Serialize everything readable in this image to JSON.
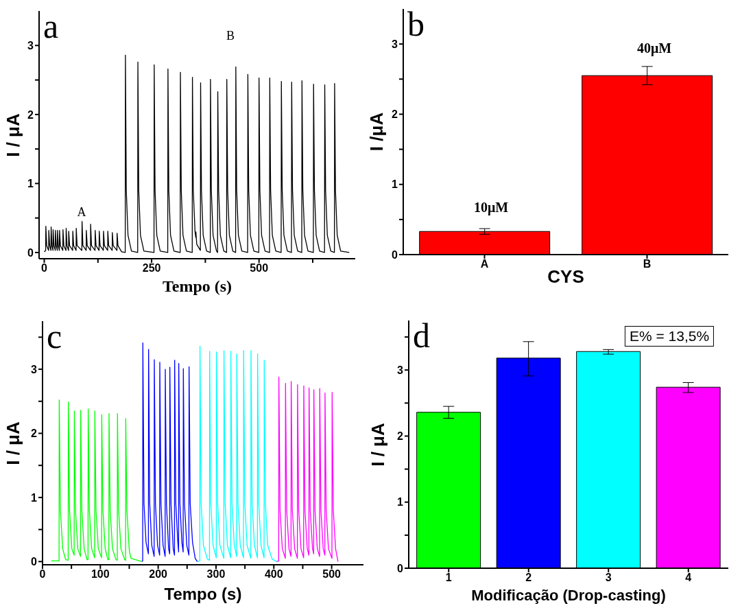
{
  "chart_data": [
    {
      "type": "line",
      "title": "a",
      "xlabel": "Tempo (s)",
      "ylabel": "I / μA",
      "xlim": [
        -12,
        724
      ],
      "ylim": [
        -0.09,
        3.5
      ],
      "xticks": [
        0,
        {
          "value": 125,
          "label": null
        },
        250,
        {
          "value": 375,
          "label": null
        },
        500,
        {
          "value": 625,
          "label": null
        }
      ],
      "yticks": [
        0,
        {
          "value": 0.5,
          "label": null
        },
        1,
        {
          "value": 1.5,
          "label": null
        },
        2,
        {
          "value": 2.5,
          "label": null
        },
        3
      ],
      "annotations": [
        "A",
        "B"
      ],
      "series": [
        {
          "color": "#000000",
          "x": [
            0,
            3.3,
            3.7,
            5.7,
            10.2,
            10.6,
            12.6,
            15.6,
            16,
            18,
            20.3,
            20.7,
            22.7,
            25.6,
            26,
            28,
            30.4,
            30.8,
            32.8,
            35.2,
            35.6,
            37.6,
            43.2,
            43.6,
            45.6,
            50.6,
            51,
            53,
            56.6,
            57,
            59,
            66.1,
            66.5,
            68.5,
            74.1,
            74.5,
            76.5,
            87.6,
            88,
            90,
            97.6,
            98,
            100,
            107.6,
            108,
            110,
            118.2,
            118.6,
            120.6,
            127.6,
            128,
            130,
            137.6,
            138,
            140,
            147.6,
            148,
            150,
            158.1,
            158.5,
            160.5,
            169.2,
            169.6,
            171.6,
            180,
            188.5,
            189,
            191,
            195,
            203,
            217.5,
            218,
            220,
            224,
            232,
            255.5,
            256,
            258,
            262,
            270,
            287.5,
            288,
            290,
            294,
            302,
            316.5,
            317,
            319,
            323,
            331,
            344.5,
            345,
            347,
            351,
            352.8,
            353,
            355,
            363.5,
            364,
            366,
            370,
            378,
            386.5,
            387,
            389,
            393,
            401,
            403.5,
            404,
            406,
            410,
            418,
            424.5,
            425,
            427,
            431,
            439,
            445.5,
            446,
            448,
            452,
            460,
            473.5,
            474,
            476,
            480,
            488,
            499.5,
            500,
            502,
            506,
            514,
            524.5,
            525,
            527,
            531,
            539,
            551.5,
            552,
            554,
            558,
            566,
            575.5,
            576,
            578,
            582,
            590,
            599.5,
            600,
            602,
            606,
            614,
            626.5,
            627,
            629,
            633,
            641,
            652.5,
            653,
            655,
            659,
            667,
            675.5,
            676,
            678,
            682,
            690,
            710
          ],
          "values": [
            0.01,
            0.03,
            0.38,
            0.1,
            0.03,
            0.32,
            0.1,
            0.03,
            0.37,
            0.1,
            0.03,
            0.33,
            0.1,
            0.03,
            0.32,
            0.1,
            0.03,
            0.32,
            0.1,
            0.03,
            0.32,
            0.1,
            0.03,
            0.33,
            0.1,
            0.03,
            0.35,
            0.1,
            0.03,
            0.31,
            0.1,
            0.03,
            0.31,
            0.1,
            0.03,
            0.35,
            0.1,
            0.03,
            0.45,
            0.1,
            0.03,
            0.32,
            0.1,
            0.03,
            0.41,
            0.1,
            0.03,
            0.32,
            0.1,
            0.03,
            0.31,
            0.1,
            0.03,
            0.31,
            0.1,
            0.03,
            0.31,
            0.1,
            0.03,
            0.29,
            0.1,
            0.03,
            0.28,
            0.1,
            0.01,
            0,
            2.86,
            0.9,
            0.25,
            0.02,
            0,
            2.76,
            0.9,
            0.25,
            0.02,
            0,
            2.72,
            0.9,
            0.25,
            0.02,
            0,
            2.66,
            0.9,
            0.25,
            0.02,
            0,
            2.61,
            0.9,
            0.25,
            0.02,
            0,
            2.54,
            0.9,
            0.3,
            0.22,
            0.3,
            0.12,
            0.03,
            2.46,
            0.9,
            0.25,
            0.02,
            0,
            2.51,
            0.9,
            0.25,
            0.02,
            0,
            2.33,
            0.9,
            0.25,
            0.02,
            0,
            2.51,
            0.9,
            0.25,
            0.02,
            0,
            2.69,
            0.9,
            0.25,
            0.02,
            0,
            2.58,
            0.9,
            0.25,
            0.02,
            0,
            2.53,
            0.9,
            0.25,
            0.02,
            0,
            2.53,
            0.9,
            0.25,
            0.02,
            0,
            2.48,
            0.9,
            0.25,
            0.02,
            0,
            2.47,
            0.9,
            0.25,
            0.02,
            0,
            2.49,
            0.9,
            0.25,
            0.02,
            0,
            2.44,
            0.9,
            0.25,
            0.02,
            0,
            2.43,
            0.9,
            0.25,
            0.02,
            0,
            2.45,
            0.9,
            0.25,
            0.02,
            0
          ]
        }
      ]
    },
    {
      "type": "bar",
      "title": "b",
      "xlabel": "CYS",
      "ylabel": "I /μA",
      "categories": [
        "A",
        "B"
      ],
      "values": [
        0.33,
        2.55
      ],
      "errors": [
        0.04,
        0.13
      ],
      "color": "#ff0000",
      "ylim": [
        0,
        3.5
      ],
      "yticks": [
        0,
        {
          "value": 0.5,
          "label": null
        },
        1,
        {
          "value": 1.5,
          "label": null
        },
        2,
        {
          "value": 2.5,
          "label": null
        },
        3
      ],
      "annotations": [
        "10μM",
        "40μM"
      ]
    },
    {
      "type": "line",
      "title": "c",
      "xlabel": "Tempo (s)",
      "ylabel": "I / μA",
      "xlim": [
        0,
        555
      ],
      "ylim": [
        -0.05,
        3.75
      ],
      "xticks": [
        0,
        {
          "value": 50,
          "label": null
        },
        100,
        {
          "value": 150,
          "label": null
        },
        200,
        {
          "value": 250,
          "label": null
        },
        300,
        {
          "value": 350,
          "label": null
        },
        400,
        {
          "value": 450,
          "label": null
        },
        500
      ],
      "yticks": [
        0,
        {
          "value": 0.5,
          "label": null
        },
        1,
        {
          "value": 1.5,
          "label": null
        },
        2,
        {
          "value": 2.5,
          "label": null
        },
        3,
        {
          "value": 3.5,
          "label": null
        }
      ],
      "series": [
        {
          "color": "#00ff00",
          "x": [
            15,
            28.6,
            28.9,
            30.9,
            34.9,
            40,
            44.4,
            44.7,
            46.7,
            50.7,
            54.7,
            55,
            57,
            61,
            65.7,
            66,
            68,
            72,
            77,
            78.7,
            79,
            81,
            85,
            90.2,
            90.5,
            92.5,
            96.5,
            102.1,
            102.4,
            104.4,
            108.4,
            113,
            114.7,
            115,
            117,
            121,
            127,
            129.3,
            129.6,
            131.6,
            135.6,
            142,
            143.6,
            143.9,
            145.9,
            149.9,
            150.5,
            153,
            172
          ],
          "values": [
            0.01,
            0.01,
            2.52,
            0.8,
            0.2,
            0.03,
            0.02,
            2.49,
            0.8,
            0.2,
            0.1,
            2.35,
            0.8,
            0.2,
            0.08,
            2.36,
            0.8,
            0.2,
            0.03,
            0.03,
            2.38,
            0.8,
            0.2,
            0.06,
            2.35,
            0.8,
            0.2,
            0.06,
            2.29,
            0.8,
            0.2,
            0.03,
            0.03,
            2.31,
            0.8,
            0.2,
            0.03,
            0.02,
            2.31,
            0.8,
            0.2,
            0.03,
            0.02,
            2.23,
            0.8,
            0.2,
            0.15,
            0.05,
            0
          ]
        },
        {
          "color": "#0000ff",
          "x": [
            172,
            173.2,
            173.5,
            175.5,
            179,
            183.1,
            183.4,
            185.4,
            189,
            193,
            193.3,
            195.3,
            199,
            202.5,
            202.8,
            204.8,
            208.5,
            212,
            212.3,
            214.3,
            218,
            219.9,
            220.2,
            222.2,
            226,
            228.2,
            228.5,
            230.5,
            234,
            235.3,
            235.6,
            237.6,
            241,
            243.2,
            243.5,
            245.5,
            249.5,
            253.1,
            253.4,
            255.4,
            259.4,
            264,
            267.6
          ],
          "values": [
            0,
            0.01,
            3.41,
            0.9,
            0.3,
            0.12,
            3.31,
            0.9,
            0.25,
            0.08,
            3.15,
            0.9,
            0.25,
            0.1,
            3.11,
            0.9,
            0.25,
            0.08,
            3.0,
            0.9,
            0.2,
            0.12,
            3.03,
            0.9,
            0.2,
            0.1,
            3.14,
            0.9,
            0.3,
            0.15,
            3.09,
            0.9,
            0.3,
            0.15,
            3.01,
            0.9,
            0.25,
            0.1,
            3.04,
            0.9,
            0.3,
            0.05,
            0
          ]
        },
        {
          "color": "#00ffff",
          "x": [
            268,
            272,
            272.3,
            274.3,
            278.3,
            285,
            288.7,
            289,
            291,
            295,
            300.5,
            300.8,
            302.8,
            306.8,
            313.5,
            313.8,
            315.8,
            319.8,
            325.4,
            325.7,
            327.7,
            331.7,
            335.7,
            336,
            338,
            342,
            347.5,
            347.8,
            349.8,
            353.8,
            360.2,
            360.5,
            362.5,
            366.5,
            371.6,
            371.9,
            373.9,
            377.9,
            383.1,
            383.4,
            385.4,
            389.4,
            397,
            405
          ],
          "values": [
            0,
            0.01,
            3.36,
            0.9,
            0.25,
            0.04,
            0.02,
            3.28,
            0.9,
            0.25,
            0.06,
            3.27,
            0.9,
            0.25,
            0.05,
            3.29,
            0.9,
            0.25,
            0.06,
            3.28,
            0.9,
            0.25,
            0.08,
            3.24,
            0.9,
            0.25,
            0.06,
            3.29,
            0.9,
            0.25,
            0.05,
            3.29,
            0.9,
            0.25,
            0.06,
            3.24,
            0.9,
            0.25,
            0.06,
            3.14,
            0.9,
            0.25,
            0.04,
            0
          ]
        },
        {
          "color": "#ff00ff",
          "x": [
            405,
            408.4,
            408.7,
            410.7,
            414.7,
            419.9,
            420.2,
            422.2,
            426.2,
            429.7,
            430,
            432,
            436,
            440.7,
            441,
            443,
            447,
            451.5,
            451.8,
            453.8,
            457.8,
            460.6,
            460.9,
            462.9,
            466.9,
            468.9,
            469.2,
            471.2,
            475.2,
            479.1,
            479.4,
            481.4,
            485.4,
            488.2,
            488.5,
            490.5,
            494.5,
            500.5,
            500.8,
            502.8,
            506.8,
            511
          ],
          "values": [
            0,
            0.01,
            2.88,
            0.8,
            0.2,
            0.05,
            2.78,
            0.8,
            0.2,
            0.08,
            2.81,
            0.8,
            0.2,
            0.05,
            2.76,
            0.8,
            0.2,
            0.06,
            2.74,
            0.8,
            0.2,
            0.1,
            2.71,
            0.8,
            0.2,
            0.12,
            2.68,
            0.8,
            0.2,
            0.08,
            2.7,
            0.8,
            0.2,
            0.1,
            2.63,
            0.8,
            0.2,
            0.05,
            2.64,
            0.8,
            0.2,
            0
          ]
        }
      ]
    },
    {
      "type": "bar",
      "title": "d",
      "xlabel": "Modificação (Drop-casting)",
      "ylabel": "I / μA",
      "categories": [
        "1",
        "2",
        "3",
        "4"
      ],
      "values": [
        2.36,
        3.18,
        3.28,
        2.74
      ],
      "errors": [
        0.09,
        [
          2.91,
          3.43
        ],
        [
          3.24,
          3.31
        ],
        [
          2.66,
          2.81
        ]
      ],
      "colors": [
        "#00ff00",
        "#0000ff",
        "#00ffff",
        "#ff00ff"
      ],
      "ylim": [
        0,
        3.75
      ],
      "yticks": [
        0,
        {
          "value": 0.5,
          "label": null
        },
        1,
        {
          "value": 1.5,
          "label": null
        },
        2,
        {
          "value": 2.5,
          "label": null
        },
        3,
        {
          "value": 3.5,
          "label": null
        }
      ],
      "annotations": [
        "E% = 13,5%"
      ]
    }
  ]
}
